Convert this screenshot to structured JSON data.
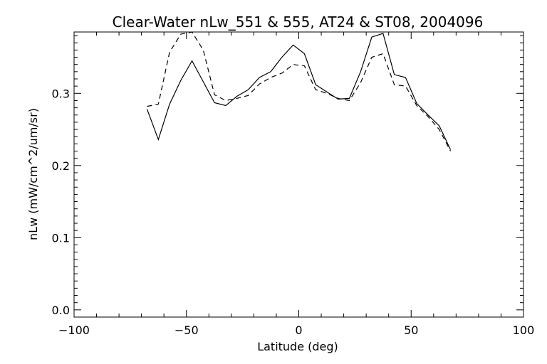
{
  "chart_data": {
    "type": "line",
    "title": "Clear-Water nLw_551 & 555, AT24 & ST08, 2004096",
    "xlabel": "Latitude (deg)",
    "ylabel": "nLw (mW/cm^2/um/sr)",
    "xlim": [
      -100,
      100
    ],
    "ylim": [
      -0.01,
      0.385
    ],
    "xticks": [
      -100,
      -50,
      0,
      50,
      100
    ],
    "xtick_labels": [
      "−100",
      "−50",
      "0",
      "50",
      "100"
    ],
    "yticks": [
      0.0,
      0.1,
      0.2,
      0.3
    ],
    "ytick_labels": [
      "0.0",
      "0.1",
      "0.2",
      "0.3"
    ],
    "grid": false,
    "series": [
      {
        "style": "solid",
        "x": [
          -67.5,
          -62.5,
          -57.5,
          -52.5,
          -47.5,
          -42.5,
          -37.5,
          -32.5,
          -27.5,
          -22.5,
          -17.5,
          -12.5,
          -7.5,
          -2.5,
          2.5,
          7.5,
          12.5,
          17.5,
          22.5,
          27.5,
          32.5,
          37.5,
          42.5,
          47.5,
          52.5,
          57.5,
          62.5,
          67.5
        ],
        "values": [
          0.278,
          0.236,
          0.285,
          0.318,
          0.345,
          0.316,
          0.287,
          0.283,
          0.296,
          0.305,
          0.322,
          0.33,
          0.35,
          0.367,
          0.355,
          0.312,
          0.302,
          0.292,
          0.293,
          0.33,
          0.378,
          0.383,
          0.326,
          0.322,
          0.286,
          0.27,
          0.255,
          0.222
        ]
      },
      {
        "style": "dashed",
        "x": [
          -67.5,
          -62.5,
          -57.5,
          -52.5,
          -47.5,
          -42.5,
          -37.5,
          -32.5,
          -27.5,
          -22.5,
          -17.5,
          -12.5,
          -7.5,
          -2.5,
          2.5,
          7.5,
          12.5,
          17.5,
          22.5,
          27.5,
          32.5,
          37.5,
          42.5,
          47.5,
          52.5,
          57.5,
          62.5,
          67.5
        ],
        "values": [
          0.282,
          0.285,
          0.357,
          0.382,
          0.385,
          0.36,
          0.298,
          0.29,
          0.293,
          0.297,
          0.313,
          0.322,
          0.328,
          0.34,
          0.338,
          0.305,
          0.3,
          0.293,
          0.29,
          0.315,
          0.35,
          0.355,
          0.312,
          0.31,
          0.283,
          0.268,
          0.25,
          0.22
        ]
      }
    ]
  }
}
